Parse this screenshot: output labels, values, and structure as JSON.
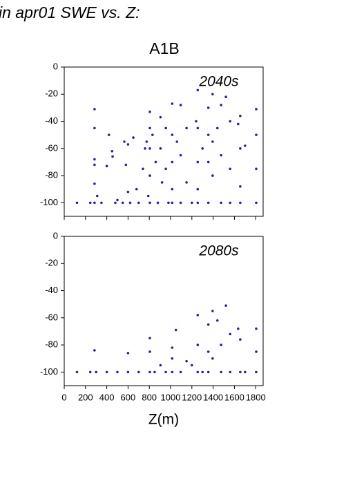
{
  "title": "in apr01 SWE vs. Z:",
  "subtitle": "A1B",
  "chart_data": [
    {
      "type": "scatter",
      "annotation": "2040s",
      "color": "#2323a8",
      "xlim": [
        0,
        1870
      ],
      "ylim": [
        -110,
        0
      ],
      "xticks": [
        0,
        200,
        400,
        600,
        800,
        1000,
        1200,
        1400,
        1600,
        1800
      ],
      "yticks": [
        -100,
        -80,
        -60,
        -40,
        -20,
        0
      ],
      "x": [
        120,
        245,
        285,
        285,
        285,
        285,
        285,
        285,
        310,
        350,
        400,
        420,
        450,
        455,
        480,
        500,
        550,
        565,
        580,
        600,
        600,
        620,
        650,
        680,
        700,
        740,
        760,
        775,
        790,
        805,
        805,
        805,
        805,
        805,
        830,
        860,
        880,
        905,
        905,
        920,
        955,
        955,
        980,
        1015,
        1015,
        1015,
        1015,
        1015,
        1060,
        1095,
        1095,
        1095,
        1150,
        1150,
        1200,
        1240,
        1255,
        1255,
        1255,
        1255,
        1255,
        1300,
        1355,
        1355,
        1355,
        1355,
        1395,
        1395,
        1395,
        1440,
        1475,
        1475,
        1475,
        1520,
        1560,
        1560,
        1560,
        1635,
        1655,
        1655,
        1655,
        1655,
        1700,
        1805,
        1805,
        1805,
        1805
      ],
      "values": [
        -100,
        -100,
        -31,
        -45,
        -68,
        -72,
        -86,
        -100,
        -95,
        -100,
        -73,
        -50,
        -62,
        -66,
        -100,
        -98,
        -100,
        -55,
        -72,
        -57,
        -92,
        -100,
        -52,
        -90,
        -100,
        -75,
        -60,
        -55,
        -95,
        -33,
        -45,
        -60,
        -80,
        -100,
        -50,
        -70,
        -100,
        -37,
        -60,
        -85,
        -45,
        -75,
        -100,
        -27,
        -50,
        -70,
        -90,
        -100,
        -55,
        -28,
        -65,
        -100,
        -45,
        -85,
        -100,
        -40,
        -17,
        -45,
        -70,
        -90,
        -100,
        -60,
        -30,
        -50,
        -70,
        -100,
        -20,
        -55,
        -80,
        -45,
        -28,
        -65,
        -100,
        -22,
        -40,
        -75,
        -100,
        -42,
        -36,
        -60,
        -88,
        -100,
        -58,
        -31,
        -50,
        -75,
        -100
      ]
    },
    {
      "type": "scatter",
      "annotation": "2080s",
      "color": "#2323a8",
      "xlabel": "Z(m)",
      "xlim": [
        0,
        1870
      ],
      "ylim": [
        -110,
        0
      ],
      "xticks": [
        0,
        200,
        400,
        600,
        800,
        1000,
        1200,
        1400,
        1600,
        1800
      ],
      "yticks": [
        -100,
        -80,
        -60,
        -40,
        -20,
        0
      ],
      "x": [
        120,
        245,
        285,
        300,
        400,
        500,
        600,
        600,
        700,
        805,
        805,
        805,
        850,
        905,
        955,
        1015,
        1015,
        1015,
        1050,
        1095,
        1150,
        1200,
        1255,
        1255,
        1255,
        1300,
        1355,
        1355,
        1355,
        1395,
        1395,
        1440,
        1475,
        1475,
        1520,
        1560,
        1560,
        1635,
        1655,
        1655,
        1700,
        1805,
        1805,
        1805
      ],
      "values": [
        -100,
        -100,
        -84,
        -100,
        -100,
        -100,
        -86,
        -100,
        -100,
        -75,
        -85,
        -100,
        -100,
        -95,
        -100,
        -82,
        -90,
        -100,
        -69,
        -100,
        -92,
        -95,
        -58,
        -80,
        -100,
        -100,
        -65,
        -85,
        -100,
        -55,
        -90,
        -62,
        -80,
        -100,
        -51,
        -72,
        -100,
        -68,
        -76,
        -100,
        -100,
        -68,
        -85,
        -100
      ]
    }
  ]
}
